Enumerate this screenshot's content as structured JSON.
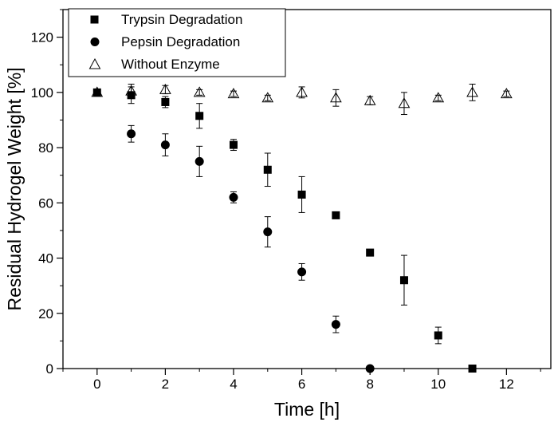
{
  "chart_data": {
    "type": "scatter",
    "title": "",
    "xlabel": "Time [h]",
    "ylabel": "Residual Hydrogel Weight [%]",
    "xlim": [
      -1,
      13.3
    ],
    "ylim": [
      0,
      130
    ],
    "xticks": [
      0,
      2,
      4,
      6,
      8,
      10,
      12
    ],
    "yticks": [
      0,
      20,
      40,
      60,
      80,
      100,
      120
    ],
    "grid": false,
    "legend_position": "top-left",
    "series": [
      {
        "name": "Trypsin Degradation",
        "marker": "square-filled",
        "x": [
          0,
          1,
          2,
          3,
          4,
          5,
          6,
          7,
          8,
          9,
          10,
          11
        ],
        "y": [
          100,
          99,
          96.5,
          91.5,
          81,
          72,
          63,
          55.5,
          42,
          32,
          12,
          0
        ],
        "err": [
          0,
          3,
          2,
          4.5,
          2,
          6,
          6.5,
          0,
          0,
          9,
          3,
          0
        ]
      },
      {
        "name": "Pepsin Degradation",
        "marker": "circle-filled",
        "x": [
          1,
          2,
          3,
          4,
          5,
          6,
          7,
          8
        ],
        "y": [
          85,
          81,
          75,
          62,
          49.5,
          35,
          16,
          0
        ],
        "err": [
          3,
          4,
          5.5,
          2,
          5.5,
          3,
          3,
          0
        ]
      },
      {
        "name": "Without Enzyme",
        "marker": "triangle-open",
        "x": [
          0,
          1,
          2,
          3,
          4,
          5,
          6,
          7,
          8,
          9,
          10,
          11,
          12
        ],
        "y": [
          100,
          100.5,
          101,
          100,
          99.5,
          98,
          100,
          98,
          97,
          96,
          98,
          100,
          99.5
        ],
        "err": [
          0,
          2.5,
          1.5,
          1,
          1,
          1,
          2,
          3,
          1.5,
          4,
          1,
          3,
          1
        ]
      }
    ]
  }
}
